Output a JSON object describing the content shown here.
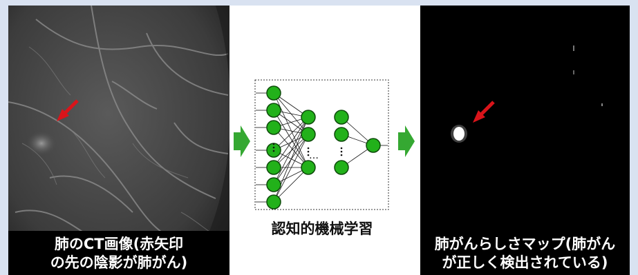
{
  "ct_panel": {
    "caption_line1": "肺のCT画像(赤矢印",
    "caption_line2": "の先の陰影が肺がん)"
  },
  "network": {
    "label": "認知的機械学習",
    "ellipsis_mark": "…",
    "node_color": "#22b11a",
    "input_nodes": 7,
    "hidden_nodes": 3,
    "hidden_layers_shown": 2,
    "output_nodes": 1
  },
  "map_panel": {
    "caption_line1": "肺がんらしさマップ(肺がん",
    "caption_line2": "が正しく検出されている)"
  },
  "colors": {
    "flow_arrow": "#35a832",
    "pointer_arrow": "#d9141a",
    "page_band": "#d9e2f1"
  }
}
